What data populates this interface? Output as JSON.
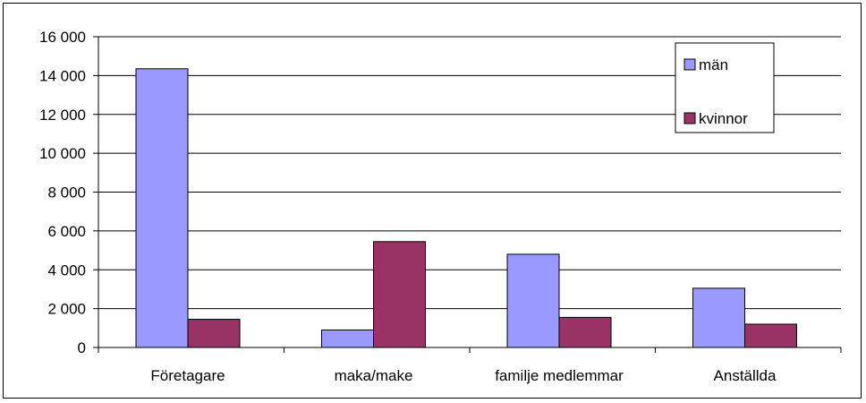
{
  "chart_data": {
    "type": "bar",
    "categories": [
      "Företagare",
      "maka/make",
      "familje medlemmar",
      "Anställda"
    ],
    "series": [
      {
        "name": "män",
        "color": "#9999ff",
        "values": [
          14350,
          900,
          4800,
          3050
        ]
      },
      {
        "name": "kvinnor",
        "color": "#993366",
        "values": [
          1450,
          5450,
          1550,
          1200
        ]
      }
    ],
    "yticks": [
      "0",
      "2 000",
      "4 000",
      "6 000",
      "8 000",
      "10 000",
      "12 000",
      "14 000",
      "16 000"
    ],
    "ylim": [
      0,
      16000
    ],
    "grid": true,
    "legend_position": "top-right"
  }
}
